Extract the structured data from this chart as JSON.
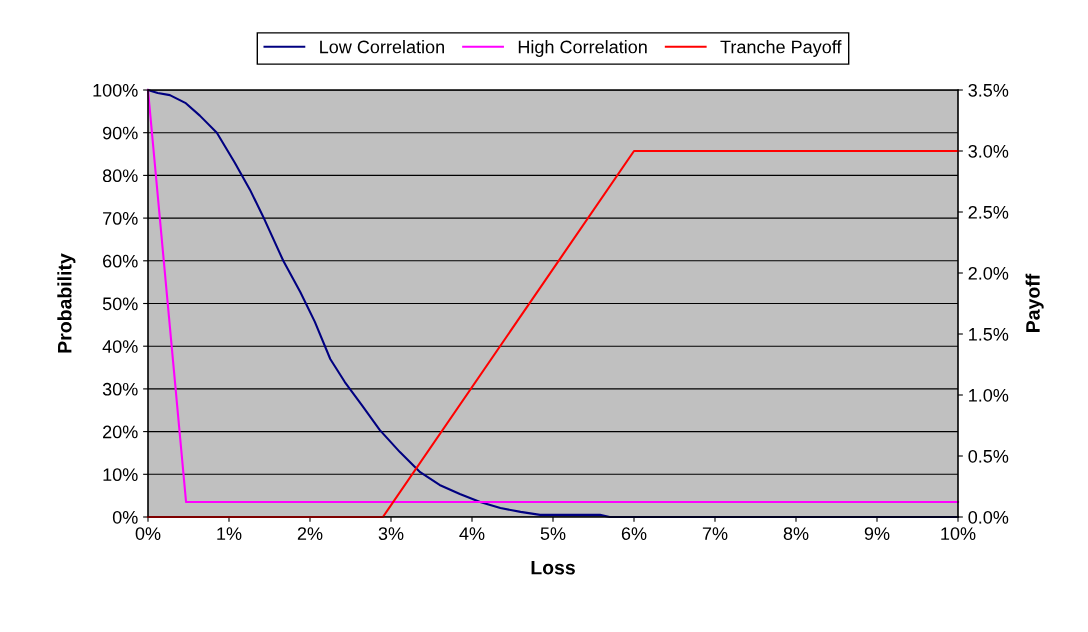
{
  "chart_data": {
    "type": "line",
    "xlabel": "Loss",
    "ylabel": "Probability",
    "y2label": "Payoff",
    "legend": "top",
    "grid": "y",
    "marker": "none",
    "line_style": "solid",
    "xlim": [
      0,
      10
    ],
    "ylim": [
      0,
      100
    ],
    "y2lim": [
      0,
      3.5
    ],
    "xticks": [
      {
        "value": 0,
        "label": "0%"
      },
      {
        "value": 1,
        "label": "1%"
      },
      {
        "value": 2,
        "label": "2%"
      },
      {
        "value": 3,
        "label": "3%"
      },
      {
        "value": 4,
        "label": "4%"
      },
      {
        "value": 5,
        "label": "5%"
      },
      {
        "value": 6,
        "label": "6%"
      },
      {
        "value": 7,
        "label": "7%"
      },
      {
        "value": 8,
        "label": "8%"
      },
      {
        "value": 9,
        "label": "9%"
      },
      {
        "value": 10,
        "label": "10%"
      }
    ],
    "yticks": [
      {
        "value": 0,
        "label": "0%"
      },
      {
        "value": 10,
        "label": "10%"
      },
      {
        "value": 20,
        "label": "20%"
      },
      {
        "value": 30,
        "label": "30%"
      },
      {
        "value": 40,
        "label": "40%"
      },
      {
        "value": 50,
        "label": "50%"
      },
      {
        "value": 60,
        "label": "60%"
      },
      {
        "value": 70,
        "label": "70%"
      },
      {
        "value": 80,
        "label": "80%"
      },
      {
        "value": 90,
        "label": "90%"
      },
      {
        "value": 100,
        "label": "100%"
      }
    ],
    "y2ticks": [
      {
        "value": 0,
        "label": "0.0%"
      },
      {
        "value": 0.5,
        "label": "0.5%"
      },
      {
        "value": 1,
        "label": "1.0%"
      },
      {
        "value": 1.5,
        "label": "1.5%"
      },
      {
        "value": 2,
        "label": "2.0%"
      },
      {
        "value": 2.5,
        "label": "2.5%"
      },
      {
        "value": 3,
        "label": "3.0%"
      },
      {
        "value": 3.5,
        "label": "3.5%"
      }
    ],
    "series": [
      {
        "name": "Low Correlation",
        "color": "#000080",
        "x": [
          0,
          0.12,
          0.27,
          0.46,
          0.64,
          0.85,
          1.07,
          1.26,
          1.44,
          1.67,
          1.88,
          2.06,
          2.25,
          2.43,
          2.64,
          2.86,
          3.11,
          3.36,
          3.6,
          3.85,
          4.1,
          4.35,
          4.6,
          4.84,
          5.09,
          5.58,
          5.7,
          10
        ],
        "values": [
          100,
          99.3,
          98.8,
          97,
          94,
          90,
          83,
          76.6,
          69.6,
          60,
          52.7,
          45.7,
          37,
          31.6,
          26.2,
          20.4,
          15.2,
          10.5,
          7.5,
          5.4,
          3.5,
          2.1,
          1.2,
          0.5,
          0.5,
          0.5,
          0,
          0
        ]
      },
      {
        "name": "High Correlation",
        "color": "#ff00ff",
        "x": [
          0,
          0.47,
          10
        ],
        "values": [
          100,
          3.5,
          3.5
        ]
      },
      {
        "name": "Tranche Payoff",
        "color": "#ff0000",
        "axis": "y2",
        "x": [
          0,
          2.9,
          6,
          10
        ],
        "values": [
          0,
          0,
          3,
          3
        ]
      }
    ]
  }
}
